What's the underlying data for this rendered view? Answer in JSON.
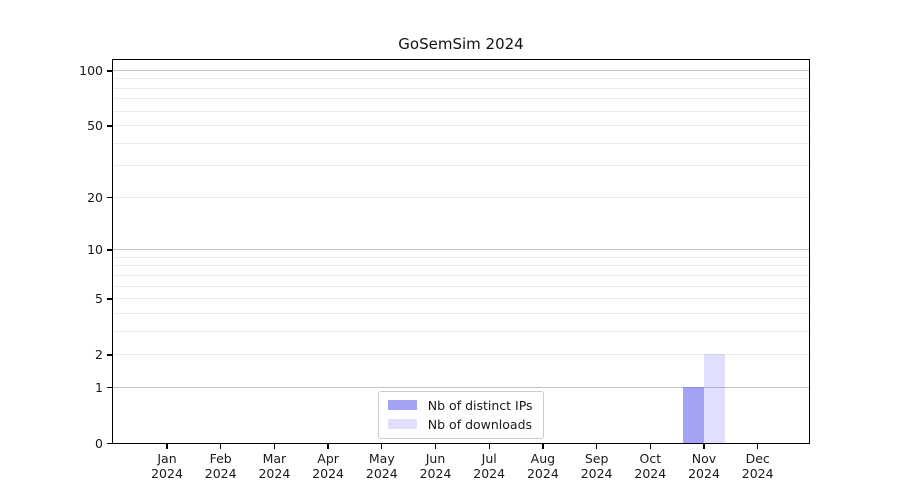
{
  "chart_data": {
    "type": "bar",
    "title": "GoSemSim 2024",
    "x_categories": [
      {
        "month": "Jan",
        "year": "2024"
      },
      {
        "month": "Feb",
        "year": "2024"
      },
      {
        "month": "Mar",
        "year": "2024"
      },
      {
        "month": "Apr",
        "year": "2024"
      },
      {
        "month": "May",
        "year": "2024"
      },
      {
        "month": "Jun",
        "year": "2024"
      },
      {
        "month": "Jul",
        "year": "2024"
      },
      {
        "month": "Aug",
        "year": "2024"
      },
      {
        "month": "Sep",
        "year": "2024"
      },
      {
        "month": "Oct",
        "year": "2024"
      },
      {
        "month": "Nov",
        "year": "2024"
      },
      {
        "month": "Dec",
        "year": "2024"
      }
    ],
    "series": [
      {
        "name": "Nb of distinct IPs",
        "color": "rgba(102,102,238,0.6)",
        "values": [
          0,
          0,
          0,
          0,
          0,
          0,
          0,
          0,
          0,
          0,
          1,
          0
        ]
      },
      {
        "name": "Nb of downloads",
        "color": "rgba(102,102,238,0.2)",
        "values": [
          0,
          0,
          0,
          0,
          0,
          0,
          0,
          0,
          0,
          0,
          2,
          0
        ]
      }
    ],
    "yaxis": {
      "scale": "log1p",
      "tick_values": [
        0,
        1,
        2,
        5,
        10,
        20,
        50,
        100
      ],
      "major_gridlines": [
        1,
        10,
        100
      ],
      "minor_gridlines": [
        2,
        3,
        4,
        5,
        6,
        7,
        8,
        9,
        20,
        30,
        40,
        50,
        60,
        70,
        80,
        90
      ],
      "ylim": [
        0,
        113
      ]
    },
    "grid": true,
    "legend_position": "lower center"
  }
}
